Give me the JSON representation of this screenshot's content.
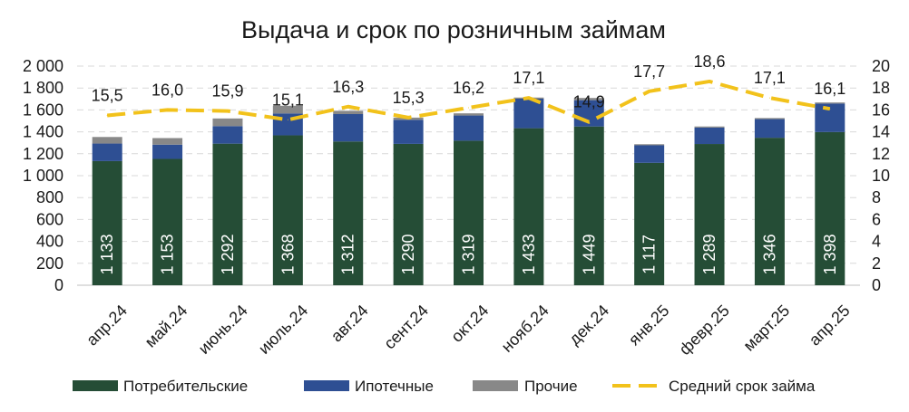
{
  "chart_data": {
    "type": "bar",
    "title": "Выдача и срок по розничным займам",
    "categories": [
      "апр.24",
      "май.24",
      "июнь.24",
      "июль.24",
      "авг.24",
      "сент.24",
      "окт.24",
      "нояб.24",
      "дек.24",
      "янв.25",
      "февр.25",
      "март.25",
      "апр.25"
    ],
    "series": [
      {
        "name": "Потребительские",
        "kind": "bar",
        "color": "#254d36",
        "values": [
          1133,
          1153,
          1292,
          1368,
          1312,
          1290,
          1319,
          1433,
          1449,
          1117,
          1289,
          1346,
          1398
        ],
        "labels": [
          "1 133",
          "1 153",
          "1 292",
          "1 368",
          "1 312",
          "1 290",
          "1 319",
          "1 433",
          "1 449",
          "1 117",
          "1 289",
          "1 346",
          "1 398"
        ]
      },
      {
        "name": "Ипотечные",
        "kind": "bar",
        "color": "#2e4f93",
        "values": [
          160,
          130,
          160,
          200,
          250,
          220,
          230,
          270,
          240,
          160,
          150,
          170,
          260
        ]
      },
      {
        "name": "Прочие",
        "kind": "bar",
        "color": "#888888",
        "values": [
          60,
          60,
          70,
          70,
          30,
          20,
          20,
          10,
          20,
          10,
          10,
          10,
          10
        ]
      },
      {
        "name": "Средний срок займа",
        "kind": "line",
        "axis": "right",
        "color": "#f2c21b",
        "values": [
          15.5,
          16.0,
          15.9,
          15.1,
          16.3,
          15.3,
          16.2,
          17.1,
          14.9,
          17.7,
          18.6,
          17.1,
          16.1
        ],
        "labels": [
          "15,5",
          "16,0",
          "15,9",
          "15,1",
          "16,3",
          "15,3",
          "16,2",
          "17,1",
          "14,9",
          "17,7",
          "18,6",
          "17,1",
          "16,1"
        ]
      }
    ],
    "y_left": {
      "range": [
        0,
        2000
      ],
      "ticks": [
        "0",
        "200",
        "400",
        "600",
        "800",
        "1 000",
        "1 200",
        "1 400",
        "1 600",
        "1 800",
        "2 000"
      ]
    },
    "y_right": {
      "range": [
        0,
        20
      ],
      "ticks": [
        "0",
        "2",
        "4",
        "6",
        "8",
        "10",
        "12",
        "14",
        "16",
        "18",
        "20"
      ]
    },
    "grid": true,
    "legend_position": "bottom"
  }
}
